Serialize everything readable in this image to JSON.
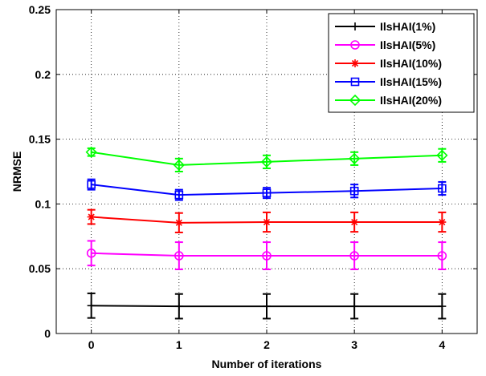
{
  "chart_data": {
    "type": "line",
    "title": "",
    "xlabel": "Number of iterations",
    "ylabel": "NRMSE",
    "x": [
      0,
      1,
      2,
      3,
      4
    ],
    "xticks": [
      "0",
      "1",
      "2",
      "3",
      "4"
    ],
    "yticks": [
      "0",
      "0.05",
      "0.1",
      "0.15",
      "0.2",
      "0.25"
    ],
    "xlim": [
      -0.4,
      4.4
    ],
    "ylim": [
      0,
      0.25
    ],
    "grid": "dotted",
    "legend_position": "top-right",
    "series": [
      {
        "name": "IlsHAI(1%)",
        "color": "#000000",
        "marker": "plus",
        "values": [
          0.0215,
          0.021,
          0.021,
          0.021,
          0.021
        ],
        "errors": [
          0.0095,
          0.0095,
          0.0095,
          0.0095,
          0.0095
        ]
      },
      {
        "name": "IlsHAI(5%)",
        "color": "#ff00ff",
        "marker": "circle",
        "values": [
          0.062,
          0.06,
          0.06,
          0.06,
          0.06
        ],
        "errors": [
          0.0095,
          0.0105,
          0.0105,
          0.0105,
          0.0105
        ]
      },
      {
        "name": "IlsHAI(10%)",
        "color": "#ff0000",
        "marker": "star",
        "values": [
          0.09,
          0.0855,
          0.086,
          0.086,
          0.086
        ],
        "errors": [
          0.0055,
          0.0075,
          0.0075,
          0.0075,
          0.0075
        ]
      },
      {
        "name": "IlsHAI(15%)",
        "color": "#0000ff",
        "marker": "square",
        "values": [
          0.115,
          0.107,
          0.1085,
          0.11,
          0.112
        ],
        "errors": [
          0.004,
          0.004,
          0.004,
          0.005,
          0.005
        ]
      },
      {
        "name": "IlsHAI(20%)",
        "color": "#00ff00",
        "marker": "diamond",
        "values": [
          0.14,
          0.13,
          0.1325,
          0.135,
          0.1375
        ],
        "errors": [
          0.003,
          0.005,
          0.005,
          0.005,
          0.005
        ]
      }
    ]
  }
}
